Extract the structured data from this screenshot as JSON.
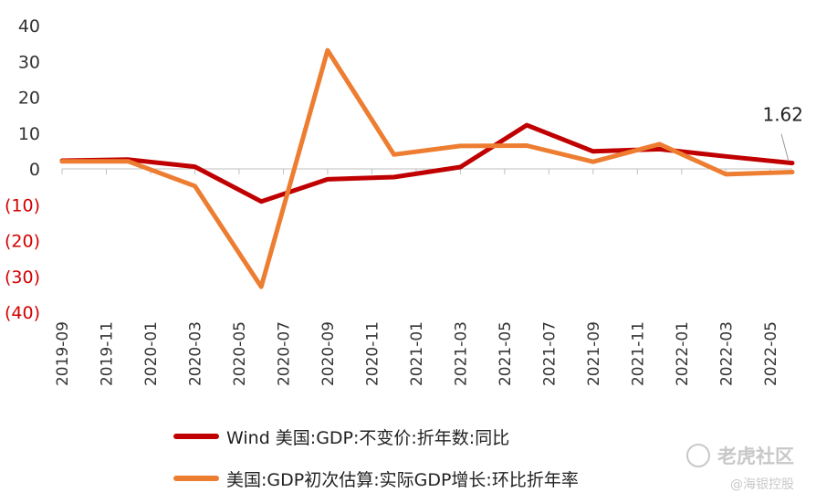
{
  "chart_data": {
    "type": "line",
    "title": "",
    "xlabel": "",
    "ylabel": "",
    "ylim": [
      -40,
      40
    ],
    "yticks": [
      {
        "value": 40,
        "label": "40",
        "color": "#333333"
      },
      {
        "value": 30,
        "label": "30",
        "color": "#333333"
      },
      {
        "value": 20,
        "label": "20",
        "color": "#333333"
      },
      {
        "value": 10,
        "label": "10",
        "color": "#333333"
      },
      {
        "value": 0,
        "label": "0",
        "color": "#333333"
      },
      {
        "value": -10,
        "label": "(10)",
        "color": "#d40000"
      },
      {
        "value": -20,
        "label": "(20)",
        "color": "#d40000"
      },
      {
        "value": -30,
        "label": "(30)",
        "color": "#d40000"
      },
      {
        "value": -40,
        "label": "(40)",
        "color": "#d40000"
      }
    ],
    "xticks": [
      "2019-09",
      "2019-11",
      "2020-01",
      "2020-03",
      "2020-05",
      "2020-07",
      "2020-09",
      "2020-11",
      "2021-01",
      "2021-03",
      "2021-05",
      "2021-07",
      "2021-09",
      "2021-11",
      "2022-01",
      "2022-03",
      "2022-05"
    ],
    "x": [
      "2019-09",
      "2019-12",
      "2020-03",
      "2020-06",
      "2020-09",
      "2020-12",
      "2021-03",
      "2021-06",
      "2021-09",
      "2021-12",
      "2022-03",
      "2022-06"
    ],
    "series": [
      {
        "name": "Wind 美国:GDP:不变价:折年数:同比",
        "color": "#c00000",
        "values": [
          2.3,
          2.6,
          0.6,
          -9.1,
          -2.9,
          -2.3,
          0.5,
          12.2,
          4.9,
          5.5,
          3.5,
          1.62
        ]
      },
      {
        "name": "美国:GDP初次估算:实际GDP增长:环比折年率",
        "color": "#ed7d31",
        "values": [
          2.1,
          2.1,
          -4.8,
          -32.9,
          33.1,
          4.0,
          6.4,
          6.5,
          2.0,
          6.9,
          -1.5,
          -0.9
        ]
      }
    ],
    "annotation": {
      "text": "1.62",
      "series": 0,
      "point": 11
    },
    "grid": false,
    "legend_position": "bottom"
  },
  "watermark": {
    "text": "老虎社区",
    "sub": "@海银控股"
  }
}
